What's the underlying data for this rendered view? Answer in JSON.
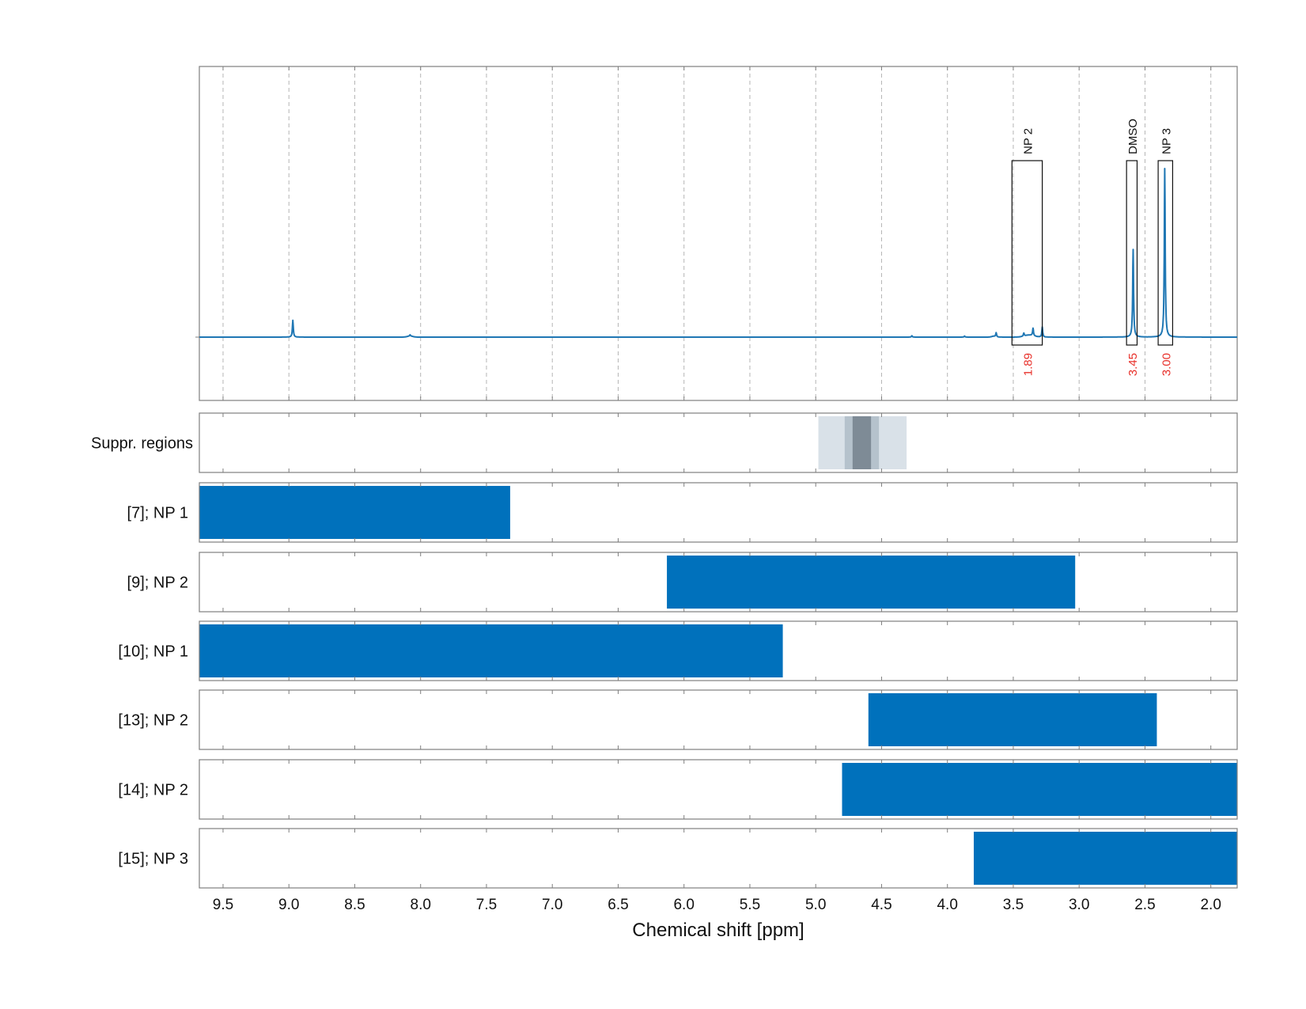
{
  "chart_data": {
    "type": "nmr_spectrum_with_range_bars",
    "xlabel": "Chemical shift [ppm]",
    "x_reversed": true,
    "xlim": [
      9.68,
      1.8
    ],
    "ticks": [
      9.5,
      9.0,
      8.5,
      8.0,
      7.5,
      7.0,
      6.5,
      6.0,
      5.5,
      5.0,
      4.5,
      4.0,
      3.5,
      3.0,
      2.5,
      2.0
    ],
    "tick_labels": [
      "9.5",
      "9.0",
      "8.5",
      "8.0",
      "7.5",
      "7.0",
      "6.5",
      "6.0",
      "5.5",
      "5.0",
      "4.5",
      "4.0",
      "3.5",
      "3.0",
      "2.5",
      "2.0"
    ],
    "grid": "dashed vertical",
    "spectrum": {
      "color": "#1f77b4",
      "baseline": 0,
      "peaks": [
        {
          "ppm": 8.97,
          "height": 0.1
        },
        {
          "ppm": 8.08,
          "height": 0.008
        },
        {
          "ppm": 4.27,
          "height": 0.008
        },
        {
          "ppm": 3.87,
          "height": 0.006
        },
        {
          "ppm": 3.63,
          "height": 0.025
        },
        {
          "ppm": 3.42,
          "height": 0.018
        },
        {
          "ppm": 3.35,
          "height": 0.045
        },
        {
          "ppm": 3.28,
          "height": 0.06
        },
        {
          "ppm": 2.59,
          "height": 0.52
        },
        {
          "ppm": 2.35,
          "height": 1.0
        }
      ]
    },
    "peak_regions": [
      {
        "label": "NP 2",
        "from": 3.51,
        "to": 3.28,
        "integral": "1.89"
      },
      {
        "label": "DMSO",
        "from": 2.64,
        "to": 2.56,
        "integral": "3.45"
      },
      {
        "label": "NP 3",
        "from": 2.4,
        "to": 2.29,
        "integral": "3.00"
      }
    ],
    "suppressed_region": {
      "label": "Suppr. regions",
      "bands": [
        {
          "from": 4.98,
          "to": 4.31,
          "shade": "#d9e1e8"
        },
        {
          "from": 4.78,
          "to": 4.52,
          "shade": "#b5c2cc"
        },
        {
          "from": 4.72,
          "to": 4.58,
          "shade": "#7e8b96"
        }
      ]
    },
    "range_rows": [
      {
        "label": "[7]; NP 1",
        "from": 9.68,
        "to": 7.32
      },
      {
        "label": "[9]; NP 2",
        "from": 6.13,
        "to": 3.03
      },
      {
        "label": "[10]; NP 1",
        "from": 9.68,
        "to": 5.25
      },
      {
        "label": "[13]; NP 2",
        "from": 4.6,
        "to": 2.41
      },
      {
        "label": "[14]; NP 2",
        "from": 4.8,
        "to": 1.8
      },
      {
        "label": "[15]; NP 3",
        "from": 3.8,
        "to": 1.8
      }
    ],
    "colors": {
      "spectrum": "#1f77b4",
      "range_bar": "#0071bc",
      "integral_text": "#e8302a"
    }
  }
}
